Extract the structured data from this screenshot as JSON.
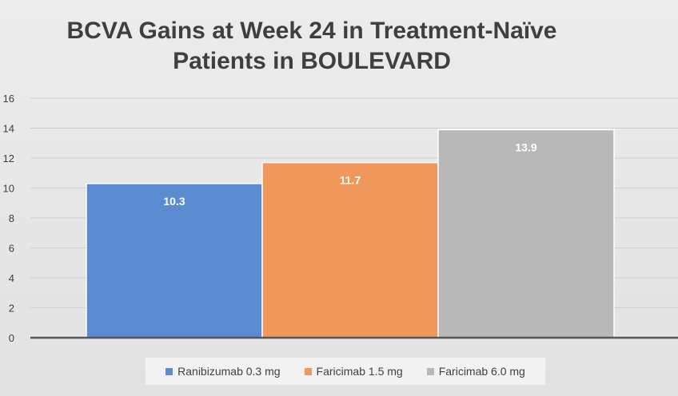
{
  "chart_data": {
    "type": "bar",
    "title_lines": [
      "BCVA Gains at Week 24 in Treatment-Naïve",
      "Patients in BOULEVARD"
    ],
    "categories": [
      "Ranibizumab 0.3 mg",
      "Faricimab 1.5 mg",
      "Faricimab 6.0 mg"
    ],
    "values": [
      10.3,
      11.7,
      13.9
    ],
    "value_labels": [
      "10.3",
      "11.7",
      "13.9"
    ],
    "colors": [
      "#5b8bd1",
      "#f0975b",
      "#b8b8b8"
    ],
    "xlabel": "",
    "ylabel": "",
    "ylim": [
      0,
      16
    ],
    "yticks": [
      0,
      2,
      4,
      6,
      8,
      10,
      12,
      14,
      16
    ],
    "ytick_labels": [
      "0",
      "2",
      "4",
      "6",
      "8",
      "10",
      "12",
      "14",
      "16"
    ],
    "grid": true,
    "legend_position": "bottom"
  }
}
